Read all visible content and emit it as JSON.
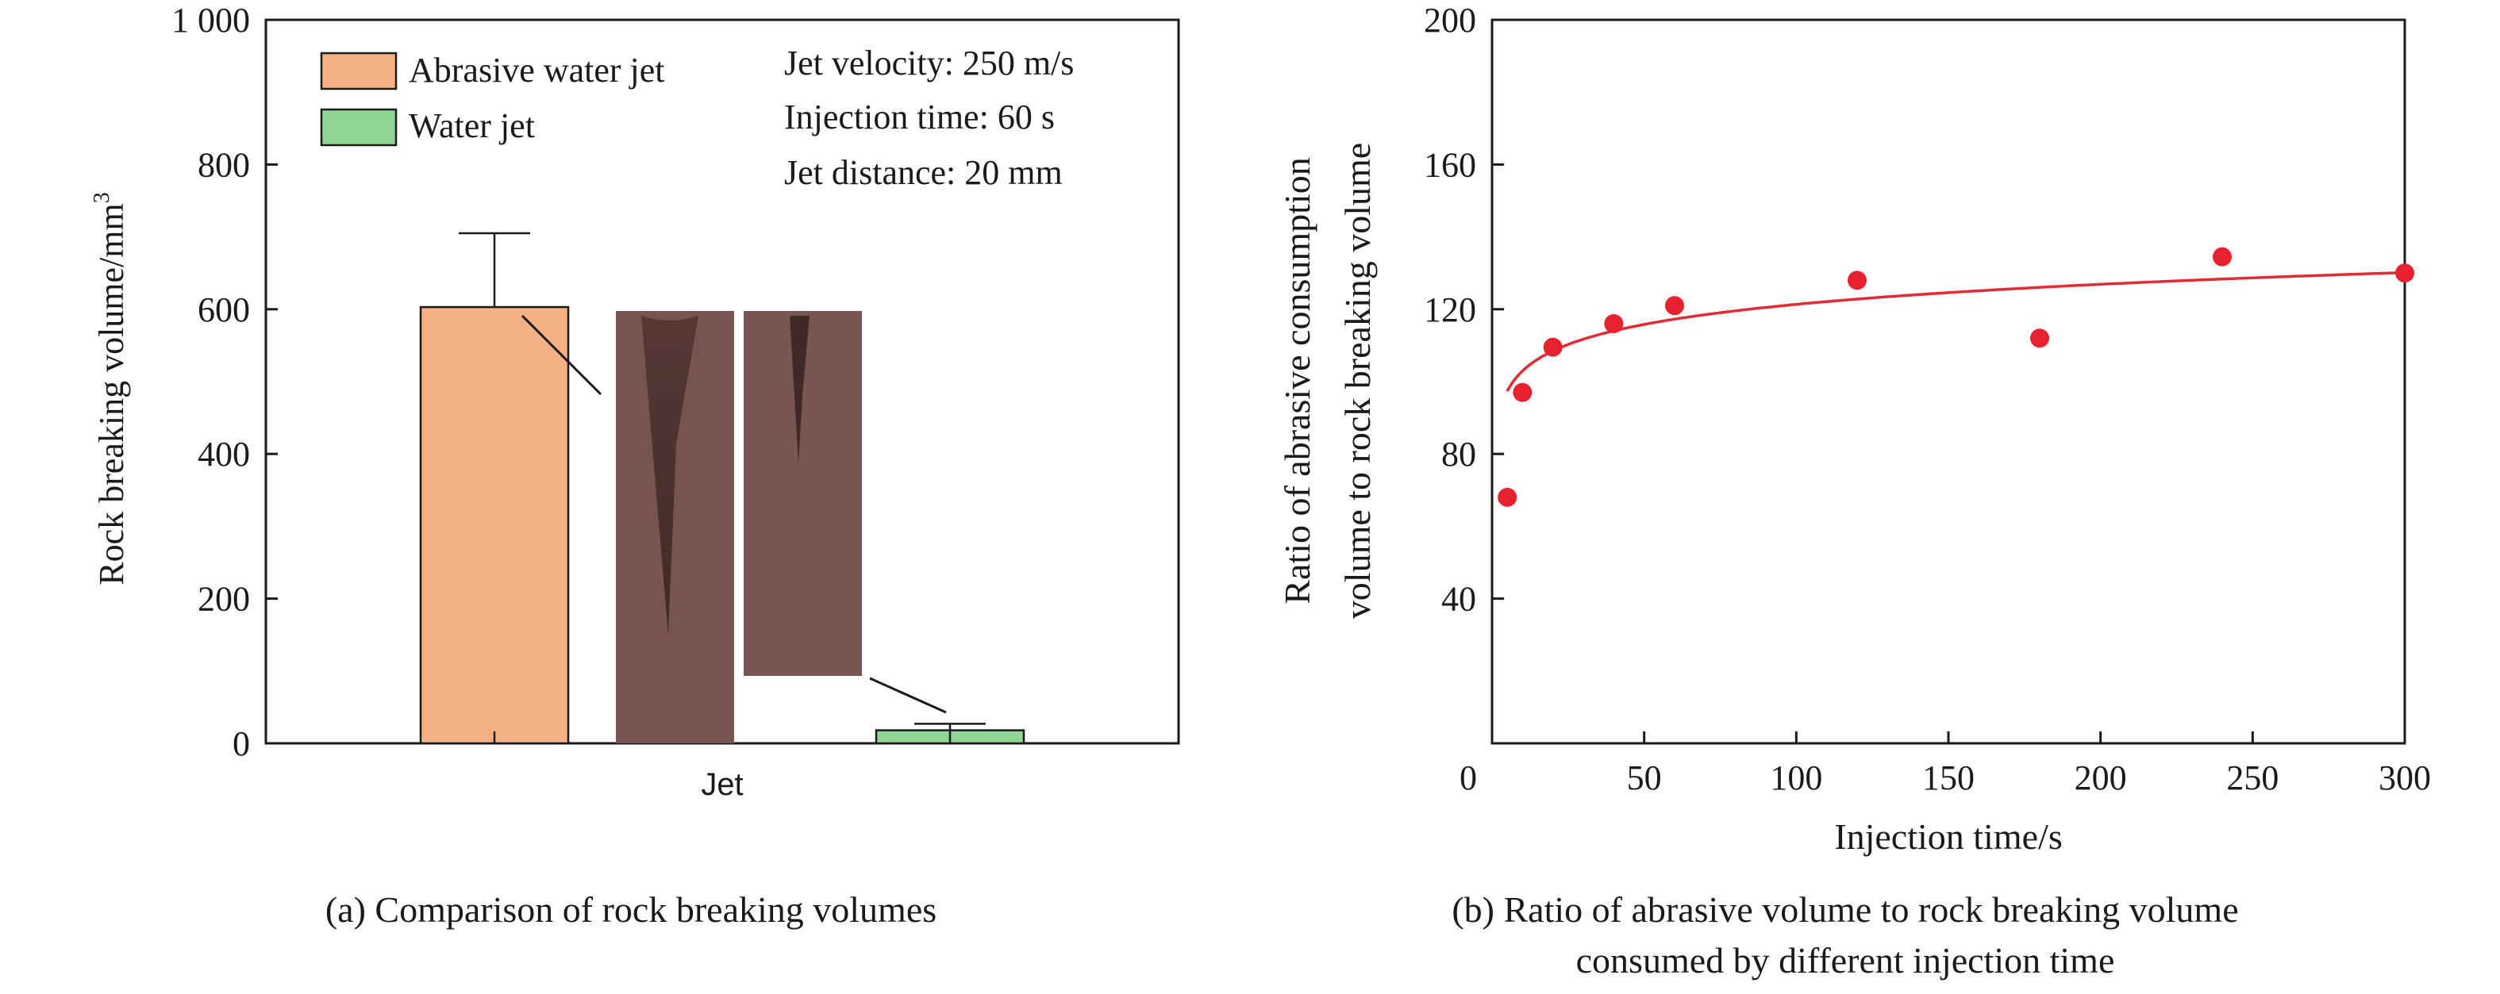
{
  "colors": {
    "abrasive": "#F4B183",
    "water": "#8FD694",
    "fit": "#E02D35",
    "points": "#E8212E",
    "rock": "#7E5A56"
  },
  "chart_data": [
    {
      "id": "a",
      "type": "bar",
      "caption": "(a) Comparison of rock breaking volumes",
      "categories": [
        "Jet"
      ],
      "ylabel": "Rock breaking volume/mm",
      "ylabel_sup": "3",
      "ylim": [
        0,
        1000
      ],
      "yticks": [
        0,
        200,
        400,
        600,
        800,
        1000
      ],
      "ytick_labels": [
        "0",
        "200",
        "400",
        "600",
        "800",
        "1 000"
      ],
      "series": [
        {
          "name": "Abrasive water jet",
          "values": [
            603
          ],
          "error": [
            102
          ],
          "color_key": "abrasive"
        },
        {
          "name": "Water jet",
          "values": [
            18
          ],
          "error": [
            9
          ],
          "color_key": "water"
        }
      ],
      "legend_position": "top-left",
      "annotations": [
        "Jet velocity: 250 m/s",
        "Injection time: 60 s",
        "Jet distance: 20 mm"
      ]
    },
    {
      "id": "b",
      "type": "scatter",
      "caption_lines": [
        "(b) Ratio of abrasive volume to rock breaking volume",
        "consumed by different injection time"
      ],
      "xlabel": "Injection time/s",
      "ylabel_lines": [
        "Ratio of abrasive consumption",
        "volume to rock breaking volume"
      ],
      "xlim": [
        0,
        300
      ],
      "ylim": [
        0,
        200
      ],
      "xticks": [
        0,
        50,
        100,
        150,
        200,
        250,
        300
      ],
      "yticks": [
        40,
        80,
        120,
        160,
        200
      ],
      "x": [
        5,
        10,
        20,
        40,
        60,
        120,
        180,
        240,
        300
      ],
      "y": [
        68,
        97,
        109.5,
        116,
        121,
        128,
        112,
        134.5,
        130
      ],
      "fit": {
        "type": "log",
        "a": 84.5,
        "b": 8.0
      }
    }
  ]
}
